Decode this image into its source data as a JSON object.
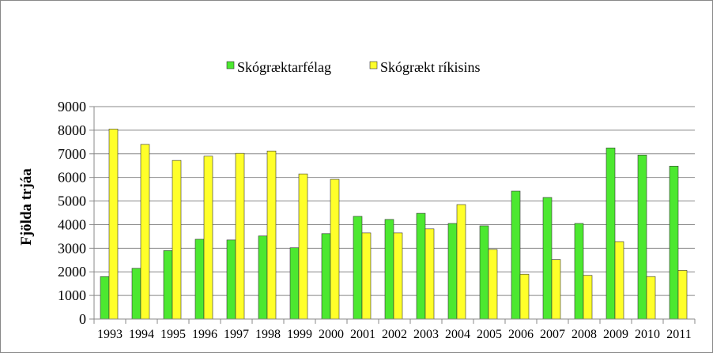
{
  "chart_data": {
    "type": "bar",
    "ylabel": "Fjölda trjáa",
    "xlabel": "",
    "title": "",
    "ylim": [
      0,
      9000
    ],
    "ytick_step": 1000,
    "grid": true,
    "legend_position": "top",
    "categories": [
      "1993",
      "1994",
      "1995",
      "1996",
      "1997",
      "1998",
      "1999",
      "2000",
      "2001",
      "2002",
      "2003",
      "2004",
      "2005",
      "2006",
      "2007",
      "2008",
      "2009",
      "2010",
      "2011"
    ],
    "series": [
      {
        "name": "Skógræktarfélag",
        "color": "#4CE830",
        "values": [
          1800,
          2150,
          2900,
          3380,
          3350,
          3520,
          3020,
          3620,
          4350,
          4220,
          4480,
          4050,
          3950,
          5420,
          5150,
          4050,
          7250,
          6950,
          6480
        ]
      },
      {
        "name": "Skógrækt ríkisins",
        "color": "#FFFF2A",
        "values": [
          8050,
          7400,
          6720,
          6900,
          7020,
          7120,
          6150,
          5920,
          3650,
          3650,
          3820,
          4850,
          2950,
          1900,
          2520,
          1850,
          3280,
          1800,
          2060
        ]
      }
    ]
  }
}
